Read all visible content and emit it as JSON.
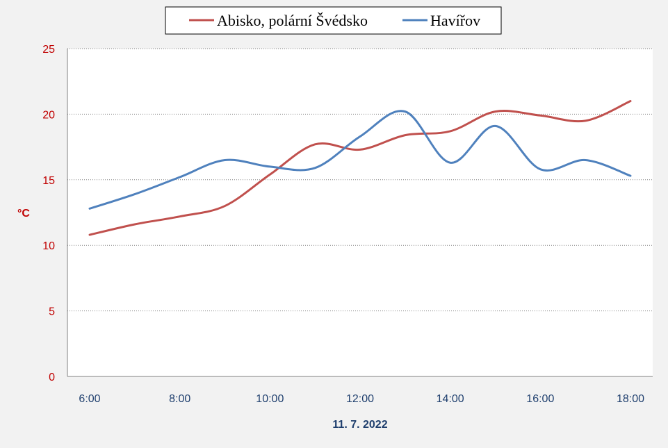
{
  "chart_data": {
    "type": "line",
    "title": "",
    "xlabel": "11. 7. 2022",
    "ylabel": "°C",
    "x": [
      "6:00",
      "7:00",
      "8:00",
      "9:00",
      "10:00",
      "11:00",
      "12:00",
      "13:00",
      "14:00",
      "15:00",
      "16:00",
      "17:00",
      "18:00"
    ],
    "xtick_labels": [
      "6:00",
      "8:00",
      "10:00",
      "12:00",
      "14:00",
      "16:00",
      "18:00"
    ],
    "ylim": [
      0,
      25
    ],
    "yticks": [
      0,
      5,
      10,
      15,
      20,
      25
    ],
    "grid": true,
    "legend_position": "top-center",
    "series": [
      {
        "name": "Abisko, polární Švédsko",
        "color": "#c0504d",
        "values": [
          10.8,
          11.6,
          12.2,
          13.0,
          15.4,
          17.7,
          17.3,
          18.4,
          18.7,
          20.2,
          19.9,
          19.5,
          21.0
        ]
      },
      {
        "name": "Havířov",
        "color": "#4f81bd",
        "values": [
          12.8,
          13.9,
          15.2,
          16.5,
          16.0,
          15.9,
          18.3,
          20.2,
          16.3,
          19.1,
          15.8,
          16.5,
          15.3
        ]
      }
    ],
    "tick_color": "#c00000",
    "grid_color": "#808080"
  }
}
